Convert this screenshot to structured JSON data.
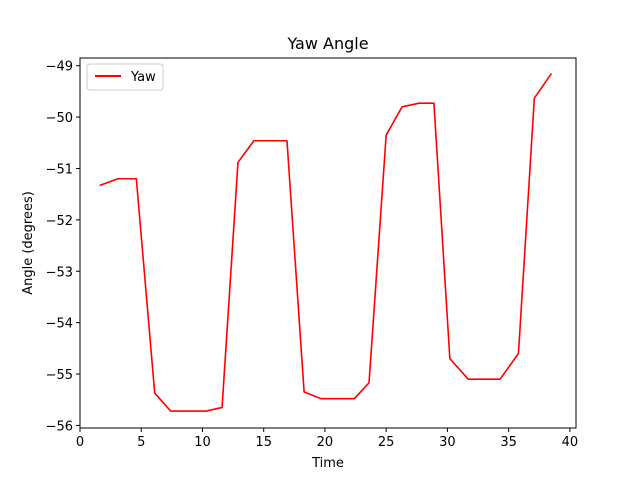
{
  "chart_data": {
    "type": "line",
    "title": "Yaw Angle",
    "xlabel": "Time",
    "ylabel": "Angle (degrees)",
    "xlim": [
      0,
      40.5
    ],
    "ylim": [
      -56.05,
      -48.85
    ],
    "xticks": [
      0,
      5,
      10,
      15,
      20,
      25,
      30,
      35,
      40
    ],
    "yticks": [
      -56,
      -55,
      -54,
      -53,
      -52,
      -51,
      -50,
      -49
    ],
    "xtick_labels": [
      "0",
      "5",
      "10",
      "15",
      "20",
      "25",
      "30",
      "35",
      "40"
    ],
    "ytick_labels": [
      "−56",
      "−55",
      "−54",
      "−53",
      "−52",
      "−51",
      "−50",
      "−49"
    ],
    "grid": false,
    "legend_position": "top-left",
    "series": [
      {
        "name": "Yaw",
        "color": "#ff0000",
        "x": [
          1.6,
          3.1,
          4.6,
          6.1,
          7.4,
          8.9,
          10.3,
          11.6,
          12.9,
          14.2,
          15.6,
          16.9,
          18.3,
          19.7,
          21.0,
          22.4,
          23.6,
          25.0,
          26.3,
          27.7,
          28.9,
          30.2,
          31.7,
          33.0,
          34.3,
          35.8,
          37.1,
          38.5
        ],
        "y": [
          -51.33,
          -51.2,
          -51.2,
          -55.37,
          -55.72,
          -55.72,
          -55.72,
          -55.65,
          -50.88,
          -50.46,
          -50.46,
          -50.46,
          -55.35,
          -55.48,
          -55.48,
          -55.48,
          -55.17,
          -50.35,
          -49.8,
          -49.73,
          -49.73,
          -54.7,
          -55.1,
          -55.1,
          -55.1,
          -54.6,
          -49.63,
          -49.15
        ]
      }
    ]
  }
}
